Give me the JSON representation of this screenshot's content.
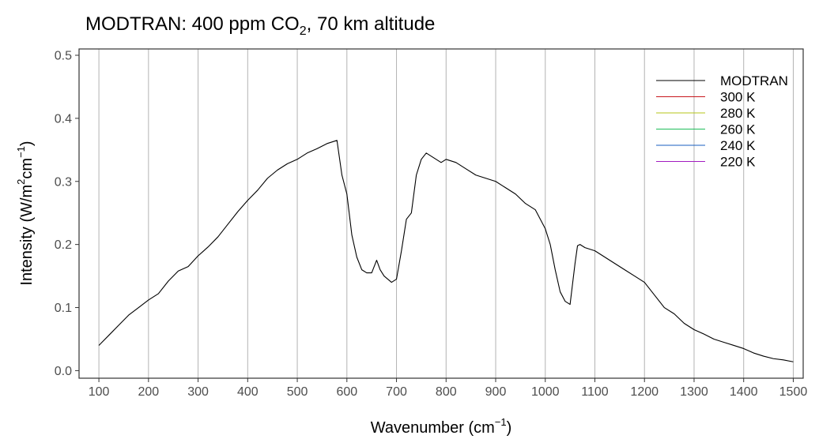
{
  "chart_data": {
    "type": "line",
    "title": "MODTRAN: 400 ppm CO",
    "title_sub": "2",
    "title_rest": ", 70 km altitude",
    "xlabel": "Wavenumber (cm",
    "xlabel_sup": "−1",
    "xlabel_end": ")",
    "ylabel": "Intensity (W/m",
    "ylabel_sup1": "2",
    "ylabel_mid": "cm",
    "ylabel_sup2": "−1",
    "ylabel_end": ")",
    "xlim": [
      60,
      1520
    ],
    "ylim": [
      -0.012,
      0.51
    ],
    "x_ticks": [
      100,
      200,
      300,
      400,
      500,
      600,
      700,
      800,
      900,
      1000,
      1100,
      1200,
      1300,
      1400,
      1500
    ],
    "y_ticks": [
      0.0,
      0.1,
      0.2,
      0.3,
      0.4,
      0.5
    ],
    "y_tick_labels": [
      "0.0",
      "0.1",
      "0.2",
      "0.3",
      "0.4",
      "0.5"
    ],
    "grid": "vertical major",
    "legend_position": "top-right",
    "series": [
      {
        "name": "MODTRAN",
        "color": "#000000",
        "x": [
          100,
          120,
          140,
          160,
          180,
          200,
          220,
          240,
          260,
          280,
          300,
          320,
          340,
          360,
          380,
          400,
          420,
          440,
          460,
          480,
          500,
          520,
          540,
          560,
          580,
          590,
          600,
          610,
          620,
          630,
          640,
          650,
          660,
          667,
          675,
          690,
          700,
          710,
          720,
          730,
          740,
          750,
          760,
          770,
          780,
          790,
          800,
          820,
          840,
          860,
          880,
          900,
          920,
          940,
          960,
          980,
          1000,
          1010,
          1020,
          1030,
          1040,
          1050,
          1060,
          1065,
          1070,
          1080,
          1100,
          1120,
          1140,
          1160,
          1180,
          1200,
          1220,
          1240,
          1260,
          1280,
          1300,
          1320,
          1340,
          1360,
          1380,
          1400,
          1420,
          1440,
          1460,
          1480,
          1500
        ],
        "y": [
          0.04,
          0.056,
          0.072,
          0.088,
          0.1,
          0.112,
          0.122,
          0.142,
          0.158,
          0.165,
          0.182,
          0.196,
          0.212,
          0.232,
          0.252,
          0.27,
          0.286,
          0.305,
          0.318,
          0.328,
          0.335,
          0.345,
          0.352,
          0.36,
          0.365,
          0.31,
          0.28,
          0.215,
          0.18,
          0.16,
          0.155,
          0.155,
          0.175,
          0.16,
          0.15,
          0.14,
          0.145,
          0.19,
          0.24,
          0.25,
          0.31,
          0.335,
          0.345,
          0.34,
          0.335,
          0.33,
          0.335,
          0.33,
          0.32,
          0.31,
          0.305,
          0.3,
          0.29,
          0.28,
          0.265,
          0.255,
          0.225,
          0.2,
          0.16,
          0.125,
          0.11,
          0.105,
          0.17,
          0.198,
          0.2,
          0.195,
          0.19,
          0.18,
          0.17,
          0.16,
          0.15,
          0.14,
          0.12,
          0.1,
          0.09,
          0.075,
          0.065,
          0.058,
          0.05,
          0.045,
          0.04,
          0.035,
          0.028,
          0.023,
          0.019,
          0.017,
          0.014
        ]
      },
      {
        "name": "300 K",
        "color": "#c8181d",
        "temperature": 300
      },
      {
        "name": "280 K",
        "color": "#b5c41a",
        "temperature": 280
      },
      {
        "name": "260 K",
        "color": "#1fbd5a",
        "temperature": 260
      },
      {
        "name": "240 K",
        "color": "#1a5fc0",
        "temperature": 240
      },
      {
        "name": "220 K",
        "color": "#a21cc0",
        "temperature": 220
      }
    ]
  }
}
